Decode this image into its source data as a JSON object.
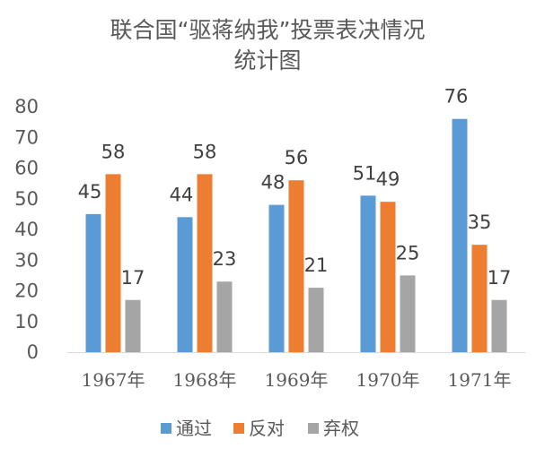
{
  "chart_data": {
    "type": "bar",
    "title_lines": [
      "联合国“驱蒋纳我”投票表决情况",
      "统计图"
    ],
    "xlabel": "",
    "ylabel": "",
    "categories": [
      "1967年",
      "1968年",
      "1969年",
      "1970年",
      "1971年"
    ],
    "series": [
      {
        "name": "通过",
        "color": "#5B9BD5",
        "values": [
          45,
          44,
          48,
          51,
          76
        ]
      },
      {
        "name": "反对",
        "color": "#ED7D31",
        "values": [
          58,
          58,
          56,
          49,
          35
        ]
      },
      {
        "name": "弃权",
        "color": "#A5A5A5",
        "values": [
          17,
          23,
          21,
          25,
          17
        ]
      }
    ],
    "ylim": [
      0,
      80
    ],
    "yticks": [
      0,
      10,
      20,
      30,
      40,
      50,
      60,
      70,
      80
    ],
    "grid": false,
    "legend": "bottom",
    "data_labels": true
  }
}
